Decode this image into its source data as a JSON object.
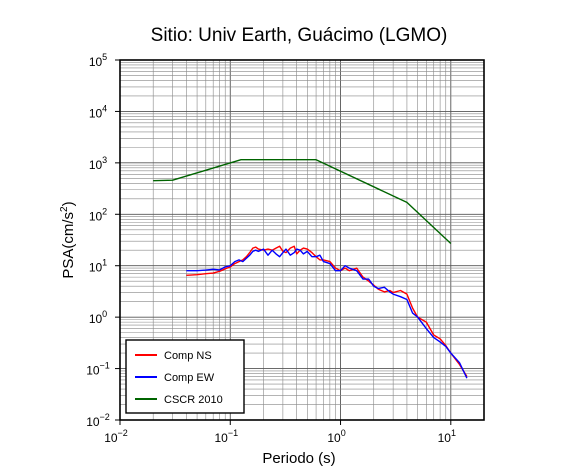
{
  "chart_data": {
    "type": "line",
    "title": "Sitio: Univ Earth, Guácimo (LGMO)",
    "xlabel": "Periodo (s)",
    "ylabel_main": "PSA(cm/s",
    "ylabel_sup": "2",
    "ylabel_close": ")",
    "x_scale": "log",
    "y_scale": "log",
    "xlim": [
      0.01,
      20
    ],
    "ylim": [
      0.01,
      100000
    ],
    "grid": true,
    "legend_position": "bottom-left",
    "x_ticks": [
      {
        "base": "10",
        "exp": "−2"
      },
      {
        "base": "10",
        "exp": "−1"
      },
      {
        "base": "10",
        "exp": "0"
      },
      {
        "base": "10",
        "exp": "1"
      }
    ],
    "y_ticks": [
      {
        "base": "10",
        "exp": "−2"
      },
      {
        "base": "10",
        "exp": "−1"
      },
      {
        "base": "10",
        "exp": "0"
      },
      {
        "base": "10",
        "exp": "1"
      },
      {
        "base": "10",
        "exp": "2"
      },
      {
        "base": "10",
        "exp": "3"
      },
      {
        "base": "10",
        "exp": "4"
      },
      {
        "base": "10",
        "exp": "5"
      }
    ],
    "series": [
      {
        "name": "Comp NS",
        "color": "#ff0000",
        "x": [
          0.04,
          0.05,
          0.06,
          0.07,
          0.08,
          0.09,
          0.1,
          0.11,
          0.12,
          0.13,
          0.14,
          0.15,
          0.16,
          0.17,
          0.18,
          0.2,
          0.22,
          0.24,
          0.26,
          0.28,
          0.3,
          0.32,
          0.35,
          0.38,
          0.4,
          0.43,
          0.46,
          0.5,
          0.55,
          0.6,
          0.65,
          0.7,
          0.8,
          0.9,
          1.0,
          1.1,
          1.2,
          1.4,
          1.6,
          1.8,
          2.0,
          2.2,
          2.5,
          2.8,
          3.0,
          3.5,
          4.0,
          4.5,
          5.0,
          6.0,
          7.0,
          8.0,
          9.0,
          10.0,
          12.0,
          14.0
        ],
        "y": [
          6.5,
          6.7,
          7.0,
          7.2,
          7.8,
          8.7,
          9.5,
          11,
          12,
          13,
          15,
          18,
          22,
          23,
          21,
          20,
          21,
          20,
          22,
          24,
          19,
          18,
          22,
          24,
          17,
          20,
          22,
          21,
          18,
          15,
          13,
          13,
          12,
          9,
          8,
          9,
          8,
          9,
          6,
          5,
          4.2,
          3.5,
          3.1,
          3.3,
          3.0,
          3.3,
          2.8,
          1.5,
          1.0,
          0.8,
          0.45,
          0.38,
          0.28,
          0.2,
          0.12,
          0.07
        ]
      },
      {
        "name": "Comp EW",
        "color": "#0000ff",
        "x": [
          0.04,
          0.05,
          0.06,
          0.07,
          0.08,
          0.09,
          0.1,
          0.11,
          0.12,
          0.13,
          0.14,
          0.15,
          0.16,
          0.17,
          0.18,
          0.2,
          0.22,
          0.24,
          0.26,
          0.28,
          0.3,
          0.32,
          0.35,
          0.38,
          0.4,
          0.43,
          0.46,
          0.5,
          0.55,
          0.6,
          0.65,
          0.7,
          0.8,
          0.9,
          1.0,
          1.1,
          1.2,
          1.4,
          1.6,
          1.8,
          2.0,
          2.2,
          2.5,
          2.8,
          3.0,
          3.5,
          4.0,
          4.5,
          5.0,
          6.0,
          7.0,
          8.0,
          9.0,
          10.0,
          12.0,
          14.0
        ],
        "y": [
          8.0,
          8.0,
          8.2,
          8.5,
          8.3,
          9.5,
          10,
          12,
          13,
          12,
          14,
          16,
          19,
          20,
          19,
          21,
          16,
          20,
          17,
          15,
          18,
          21,
          16,
          18,
          21,
          20,
          17,
          19,
          15,
          15,
          16,
          12,
          11,
          8,
          8,
          10,
          9,
          8,
          5.5,
          5.5,
          4.0,
          3.6,
          3.8,
          3.1,
          2.8,
          2.5,
          2.2,
          1.2,
          1.0,
          0.6,
          0.4,
          0.33,
          0.27,
          0.2,
          0.13,
          0.065
        ]
      },
      {
        "name": "CSCR 2010",
        "color": "#006400",
        "x": [
          0.02,
          0.03,
          0.125,
          0.6,
          4.0,
          10.0
        ],
        "y": [
          450,
          460,
          1150,
          1150,
          170,
          27
        ]
      }
    ]
  }
}
